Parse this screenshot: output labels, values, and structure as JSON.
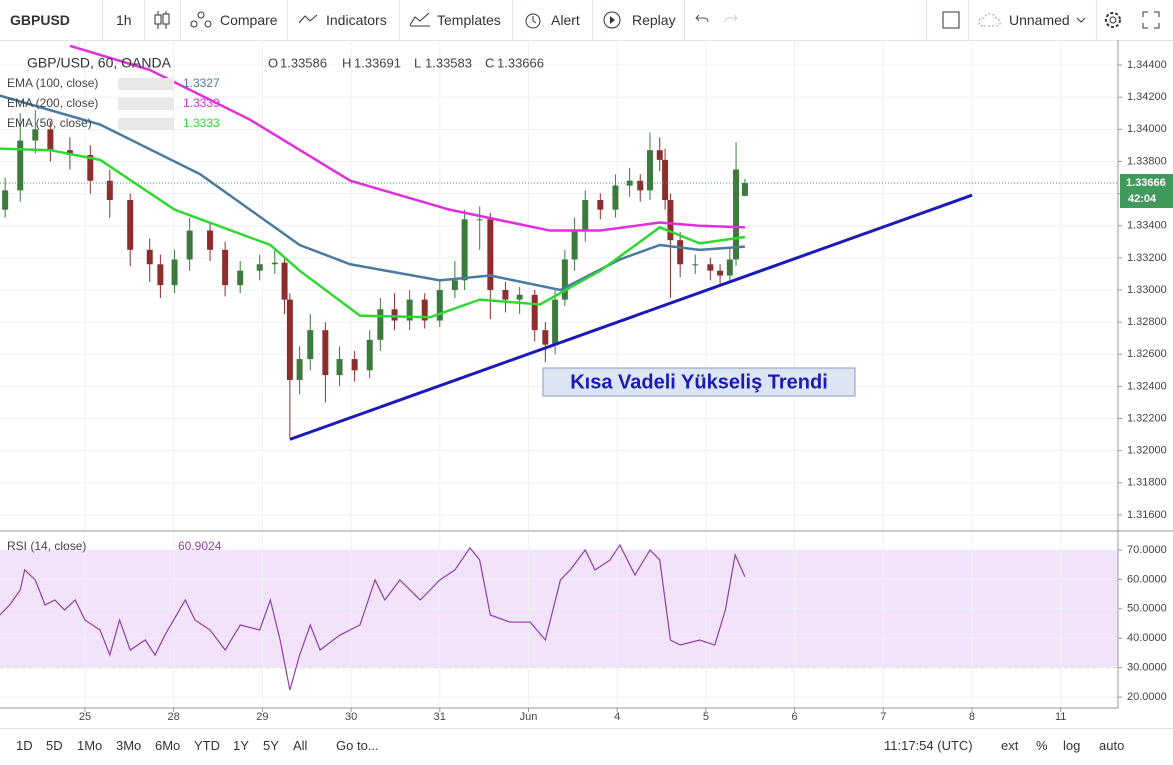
{
  "toolbar": {
    "symbol": "GBPUSD",
    "interval": "1h",
    "buttons": [
      "Compare",
      "Indicators",
      "Templates",
      "Alert",
      "Replay"
    ],
    "layout_name": "Unnamed"
  },
  "chart_data": [
    {
      "type": "candlestick",
      "title": "GBP/USD, 60, OANDA",
      "ohlc_labels": [
        "O",
        "H",
        "L",
        "C"
      ],
      "up_color": "#3d7a3d",
      "down_color": "#8c2e2e",
      "last_price_color": "#3f9a5c",
      "countdown": "42:04",
      "xlim": [
        -0.958,
        11.646
      ],
      "xticks": [
        {
          "value": 0,
          "label": "25"
        },
        {
          "value": 1,
          "label": "28"
        },
        {
          "value": 2,
          "label": "29"
        },
        {
          "value": 3,
          "label": "30"
        },
        {
          "value": 4,
          "label": "31"
        },
        {
          "value": 5,
          "label": "Jun"
        },
        {
          "value": 6,
          "label": "4"
        },
        {
          "value": 7,
          "label": "5"
        },
        {
          "value": 8,
          "label": "6"
        },
        {
          "value": 9,
          "label": "7"
        },
        {
          "value": 10,
          "label": "8"
        },
        {
          "value": 11,
          "label": "11"
        }
      ],
      "ylim": [
        1.31506,
        1.34556
      ],
      "yticks": [
        {
          "value": 1.316,
          "label": "1.31600"
        },
        {
          "value": 1.318,
          "label": "1.31800"
        },
        {
          "value": 1.32,
          "label": "1.32000"
        },
        {
          "value": 1.322,
          "label": "1.32200"
        },
        {
          "value": 1.324,
          "label": "1.32400"
        },
        {
          "value": 1.326,
          "label": "1.32600"
        },
        {
          "value": 1.328,
          "label": "1.32800"
        },
        {
          "value": 1.33,
          "label": "1.33000"
        },
        {
          "value": 1.332,
          "label": "1.33200"
        },
        {
          "value": 1.334,
          "label": "1.33400"
        },
        {
          "value": 1.336,
          "label": "1.33600"
        },
        {
          "value": 1.338,
          "label": "1.33800"
        },
        {
          "value": 1.34,
          "label": "1.34000"
        },
        {
          "value": 1.342,
          "label": "1.34200"
        },
        {
          "value": 1.344,
          "label": "1.34400"
        }
      ],
      "grid": true,
      "candles": {
        "x": [
          -0.9,
          -0.73,
          -0.56,
          -0.39,
          -0.17,
          0.06,
          0.28,
          0.51,
          0.73,
          0.85,
          1.01,
          1.18,
          1.41,
          1.58,
          1.75,
          1.97,
          2.14,
          2.25,
          2.31,
          2.42,
          2.54,
          2.71,
          2.87,
          3.04,
          3.21,
          3.33,
          3.49,
          3.66,
          3.83,
          4,
          4.17,
          4.28,
          4.45,
          4.57,
          4.74,
          4.9,
          5.07,
          5.19,
          5.3,
          5.41,
          5.52,
          5.64,
          5.81,
          5.98,
          6.14,
          6.26,
          6.37,
          6.48,
          6.54,
          6.6,
          6.71,
          6.88,
          7.05,
          7.16,
          7.27,
          7.34,
          7.44
        ],
        "open": [
          1.335,
          1.3362,
          1.3393,
          1.34,
          1.3387,
          1.3384,
          1.3368,
          1.3356,
          1.3325,
          1.3316,
          1.3303,
          1.3319,
          1.3337,
          1.3325,
          1.3303,
          1.3312,
          1.3316,
          1.3317,
          1.3294,
          1.3244,
          1.3257,
          1.3275,
          1.3247,
          1.3257,
          1.325,
          1.3269,
          1.3288,
          1.3281,
          1.3294,
          1.3281,
          1.33,
          1.3306,
          1.3344,
          1.3344,
          1.33,
          1.3294,
          1.3297,
          1.3275,
          1.3266,
          1.3294,
          1.3319,
          1.3337,
          1.3356,
          1.335,
          1.3365,
          1.3368,
          1.3362,
          1.3387,
          1.3381,
          1.3356,
          1.3331,
          1.3316,
          1.3316,
          1.3312,
          1.3309,
          1.3319,
          1.33586
        ],
        "high": [
          1.337,
          1.341,
          1.3412,
          1.3405,
          1.3395,
          1.339,
          1.3375,
          1.336,
          1.3332,
          1.3322,
          1.3325,
          1.3345,
          1.3342,
          1.333,
          1.3318,
          1.3322,
          1.3325,
          1.332,
          1.3298,
          1.3265,
          1.3285,
          1.328,
          1.3265,
          1.3262,
          1.3275,
          1.3295,
          1.3298,
          1.33,
          1.3298,
          1.3306,
          1.3318,
          1.335,
          1.3352,
          1.3348,
          1.3305,
          1.3302,
          1.33,
          1.328,
          1.33,
          1.3325,
          1.3345,
          1.3362,
          1.336,
          1.3372,
          1.3376,
          1.3372,
          1.3398,
          1.3395,
          1.3388,
          1.336,
          1.3336,
          1.3322,
          1.332,
          1.3316,
          1.3326,
          1.3392,
          1.33691
        ],
        "low": [
          1.3345,
          1.3355,
          1.3385,
          1.338,
          1.3375,
          1.336,
          1.3345,
          1.3315,
          1.3305,
          1.3295,
          1.3298,
          1.3312,
          1.3318,
          1.3296,
          1.3298,
          1.3306,
          1.331,
          1.3285,
          1.3208,
          1.3235,
          1.325,
          1.323,
          1.324,
          1.3243,
          1.3245,
          1.3262,
          1.3275,
          1.3275,
          1.3276,
          1.3277,
          1.3295,
          1.33,
          1.3325,
          1.3282,
          1.3286,
          1.3285,
          1.3268,
          1.3255,
          1.326,
          1.329,
          1.3312,
          1.333,
          1.3344,
          1.3345,
          1.3358,
          1.3355,
          1.3356,
          1.3374,
          1.335,
          1.3295,
          1.3308,
          1.331,
          1.3306,
          1.3302,
          1.3305,
          1.3315,
          1.33583
        ],
        "close": [
          1.3362,
          1.3393,
          1.34,
          1.3387,
          1.3384,
          1.3368,
          1.3356,
          1.3325,
          1.3316,
          1.3303,
          1.3319,
          1.3337,
          1.3325,
          1.3303,
          1.3312,
          1.3316,
          1.3317,
          1.3294,
          1.3244,
          1.3257,
          1.3275,
          1.3247,
          1.3257,
          1.325,
          1.3269,
          1.3288,
          1.3281,
          1.3294,
          1.3281,
          1.33,
          1.3306,
          1.3344,
          1.3344,
          1.33,
          1.3294,
          1.3297,
          1.3275,
          1.3266,
          1.3294,
          1.3319,
          1.3337,
          1.3356,
          1.335,
          1.3365,
          1.3368,
          1.3362,
          1.3387,
          1.3381,
          1.3356,
          1.3331,
          1.3316,
          1.3316,
          1.3312,
          1.3309,
          1.3319,
          1.3375,
          1.33666
        ]
      },
      "series": [
        {
          "name": "EMA (100, close)",
          "color": "#4a7a9e",
          "x": [
            -0.96,
            0.17,
            1.3,
            2.42,
            2.99,
            4,
            4.57,
            5.36,
            6.03,
            6.48,
            6.93,
            7.44
          ],
          "values": [
            1.3421,
            1.3403,
            1.3372,
            1.3328,
            1.3316,
            1.3306,
            1.3309,
            1.33,
            1.3319,
            1.3328,
            1.3325,
            1.3327
          ]
        },
        {
          "name": "EMA (200, close)",
          "color": "#e02ee0",
          "x": [
            -0.17,
            0.73,
            1.86,
            2.99,
            4.11,
            5.24,
            5.81,
            6.48,
            6.93,
            7.44
          ],
          "values": [
            1.3452,
            1.3437,
            1.3406,
            1.3368,
            1.335,
            1.3337,
            1.3337,
            1.3342,
            1.334,
            1.3339
          ]
        },
        {
          "name": "EMA (50, close)",
          "color": "#2fd82f",
          "x": [
            -0.96,
            -0.39,
            0.17,
            1.01,
            2.09,
            2.42,
            3.1,
            3.89,
            4.45,
            5.13,
            5.81,
            6.48,
            6.93,
            7.44
          ],
          "values": [
            1.3388,
            1.3387,
            1.3381,
            1.335,
            1.3328,
            1.3312,
            1.3284,
            1.3283,
            1.3294,
            1.3291,
            1.3312,
            1.3339,
            1.3329,
            1.3333
          ]
        }
      ],
      "trendline": {
        "color": "#1a1ab8",
        "x": [
          2.31,
          10
        ],
        "y": [
          1.3207,
          1.3359
        ]
      },
      "annotation": "Kısa Vadeli Yükseliş Trendi"
    },
    {
      "type": "line",
      "xlim": [
        -0.958,
        11.646
      ],
      "ylim": [
        16.3,
        76.1
      ],
      "yticks": [
        {
          "value": 20,
          "label": "20.0000"
        },
        {
          "value": 30,
          "label": "30.0000"
        },
        {
          "value": 40,
          "label": "40.0000"
        },
        {
          "value": 50,
          "label": "50.0000"
        },
        {
          "value": 60,
          "label": "60.0000"
        },
        {
          "value": 70,
          "label": "70.0000"
        }
      ],
      "band": [
        30,
        70
      ],
      "band_color": "#f2e3fa",
      "grid": true,
      "series": [
        {
          "name": "RSI (14, close)",
          "color": "#8e3fa6",
          "x": [
            -0.96,
            -0.85,
            -0.73,
            -0.68,
            -0.56,
            -0.45,
            -0.34,
            -0.23,
            -0.11,
            0,
            0.17,
            0.28,
            0.39,
            0.51,
            0.68,
            0.79,
            0.9,
            1.13,
            1.24,
            1.41,
            1.58,
            1.75,
            1.97,
            2.09,
            2.2,
            2.31,
            2.42,
            2.54,
            2.65,
            2.87,
            3.1,
            3.27,
            3.38,
            3.55,
            3.78,
            4,
            4.17,
            4.34,
            4.45,
            4.57,
            4.79,
            5.02,
            5.19,
            5.36,
            5.47,
            5.64,
            5.75,
            5.92,
            6.03,
            6.2,
            6.37,
            6.48,
            6.6,
            6.71,
            6.93,
            7.1,
            7.22,
            7.33,
            7.44
          ],
          "values": [
            47.9,
            51.3,
            56.4,
            63.2,
            59.8,
            51.3,
            53,
            49.6,
            53,
            46.2,
            42.8,
            34.3,
            46.2,
            36,
            39.4,
            34.3,
            41,
            53,
            46.2,
            42.8,
            36,
            44.5,
            42.8,
            53,
            39.4,
            22.4,
            34.3,
            44.5,
            36,
            41,
            44.5,
            59.8,
            53,
            59.8,
            53,
            59.8,
            63.2,
            70.7,
            66.6,
            47.9,
            45.5,
            45.5,
            39.4,
            59.8,
            63.2,
            70,
            63.2,
            66.6,
            71.7,
            61.5,
            70,
            66.6,
            39.4,
            37.7,
            39.4,
            37.7,
            49.6,
            68.3,
            60.9024
          ]
        }
      ]
    }
  ],
  "bottom_bar": {
    "ranges": [
      "1D",
      "5D",
      "1Mo",
      "3Mo",
      "6Mo",
      "YTD",
      "1Y",
      "5Y",
      "All"
    ],
    "goto": "Go to...",
    "time": "11:17:54 (UTC)",
    "options": [
      "ext",
      "%",
      "log",
      "auto"
    ]
  }
}
